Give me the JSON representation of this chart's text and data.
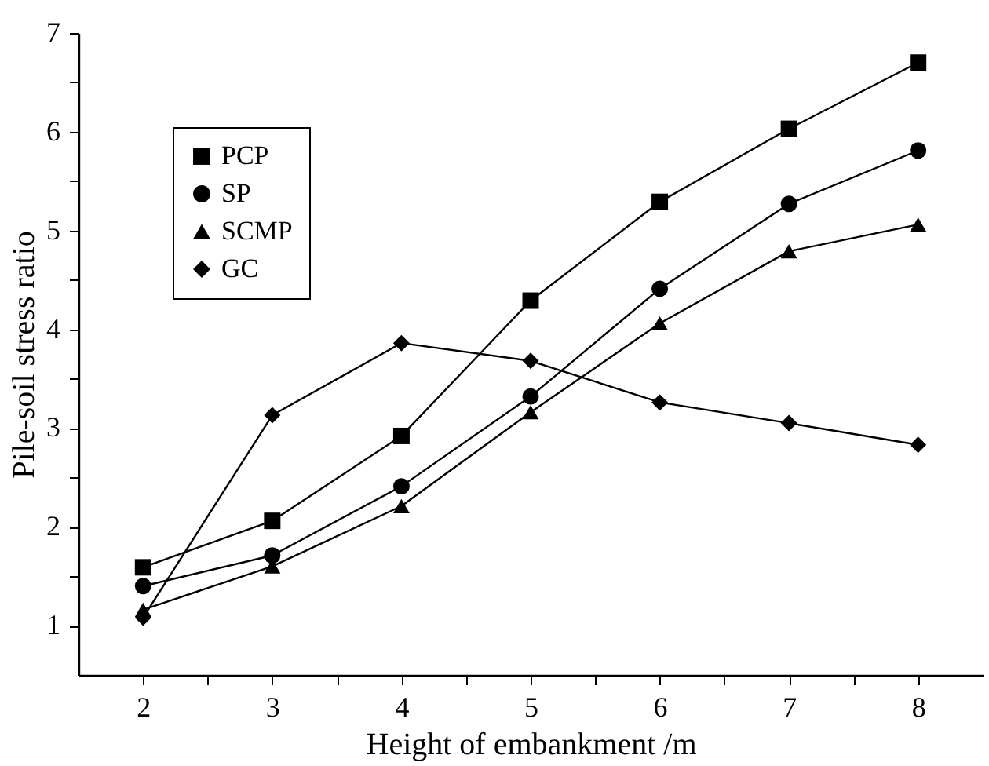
{
  "chart_data": {
    "type": "line",
    "xlabel": "Height of embankment /m",
    "ylabel": "Pile-soil stress ratio",
    "x": [
      2,
      3,
      4,
      5,
      6,
      7,
      8
    ],
    "xlim": [
      1.5,
      8.5
    ],
    "ylim": [
      0.5,
      7
    ],
    "xticks": [
      2,
      {
        "value": 2.5,
        "label": null
      },
      3,
      {
        "value": 3.5,
        "label": null
      },
      4,
      {
        "value": 4.5,
        "label": null
      },
      5,
      {
        "value": 5.5,
        "label": null
      },
      6,
      {
        "value": 6.5,
        "label": null
      },
      7,
      {
        "value": 7.5,
        "label": null
      },
      8
    ],
    "yticks": [
      1,
      {
        "value": 1.5,
        "label": null
      },
      2,
      {
        "value": 2.5,
        "label": null
      },
      3,
      {
        "value": 3.5,
        "label": null
      },
      4,
      {
        "value": 4.5,
        "label": null
      },
      5,
      {
        "value": 5.5,
        "label": null
      },
      6,
      {
        "value": 6.5,
        "label": null
      },
      7
    ],
    "grid": false,
    "legend": "top left",
    "line_style": "solid",
    "series": [
      {
        "name": "PCP",
        "color": "#000000",
        "marker": "square",
        "values": [
          1.59,
          2.06,
          2.92,
          4.29,
          5.29,
          6.03,
          6.7
        ]
      },
      {
        "name": "SP",
        "color": "#000000",
        "marker": "circle",
        "values": [
          1.4,
          1.71,
          2.41,
          3.32,
          4.41,
          5.27,
          5.81
        ]
      },
      {
        "name": "SCMP",
        "color": "#000000",
        "marker": "triangle",
        "values": [
          1.16,
          1.6,
          2.21,
          3.16,
          4.06,
          4.79,
          5.06
        ]
      },
      {
        "name": "GC",
        "color": "#000000",
        "marker": "diamond",
        "values": [
          1.08,
          3.13,
          3.86,
          3.68,
          3.26,
          3.05,
          2.83
        ]
      }
    ]
  }
}
